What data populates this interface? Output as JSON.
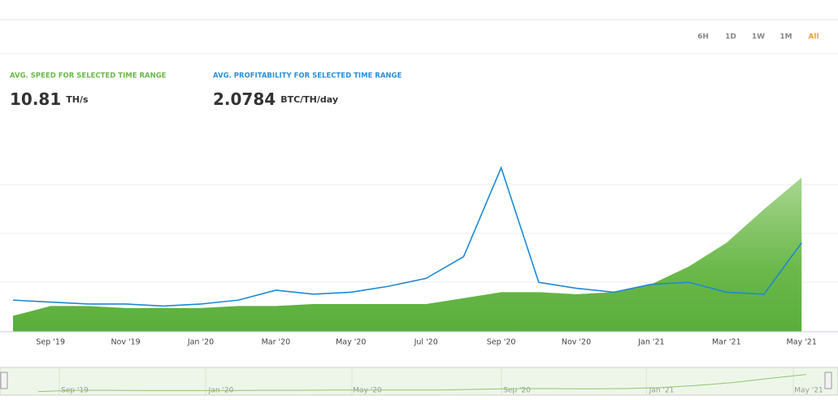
{
  "range_buttons": [
    "6H",
    "1D",
    "1W",
    "1M",
    "All"
  ],
  "active_range": "All",
  "stats": [
    {
      "label": "AVG. SPEED FOR SELECTED TIME RANGE",
      "value": 10.81,
      "unit": "TH/s",
      "color": "#6ab84a"
    },
    {
      "label": "AVG. PROFITABILITY FOR SELECTED TIME RANGE",
      "value": 2.0784,
      "unit": "BTC/TH/day",
      "color": "#2a8fd4"
    }
  ],
  "chart_data": {
    "type": "area-line",
    "categories": [
      null,
      "Sep '19",
      null,
      "Nov '19",
      null,
      "Jan '20",
      null,
      "Mar '20",
      null,
      "May '20",
      null,
      "Jul '20",
      null,
      "Sep '20",
      null,
      "Nov '20",
      null,
      "Jan '21",
      null,
      "Mar '21",
      null,
      "May '21"
    ],
    "series": [
      {
        "name": "Speed",
        "color": "#6ab84a",
        "values": [
          8,
          13,
          13,
          12,
          12,
          12,
          13,
          13,
          14,
          14,
          14,
          14,
          17,
          20,
          20,
          19,
          20,
          24,
          33,
          45,
          62,
          78
        ]
      },
      {
        "name": "Profitability",
        "color": "#1e88d4",
        "values": [
          16,
          15,
          14,
          14,
          13,
          14,
          16,
          21,
          19,
          20,
          23,
          27,
          38,
          83,
          25,
          22,
          20,
          24,
          25,
          20,
          19,
          45
        ]
      }
    ],
    "ylim": [
      0,
      100
    ]
  },
  "navigator": {
    "labels": [
      "Sep '19",
      "Jan '20",
      "May '20",
      "Sep '20",
      "Jan '21",
      "May '21"
    ]
  }
}
